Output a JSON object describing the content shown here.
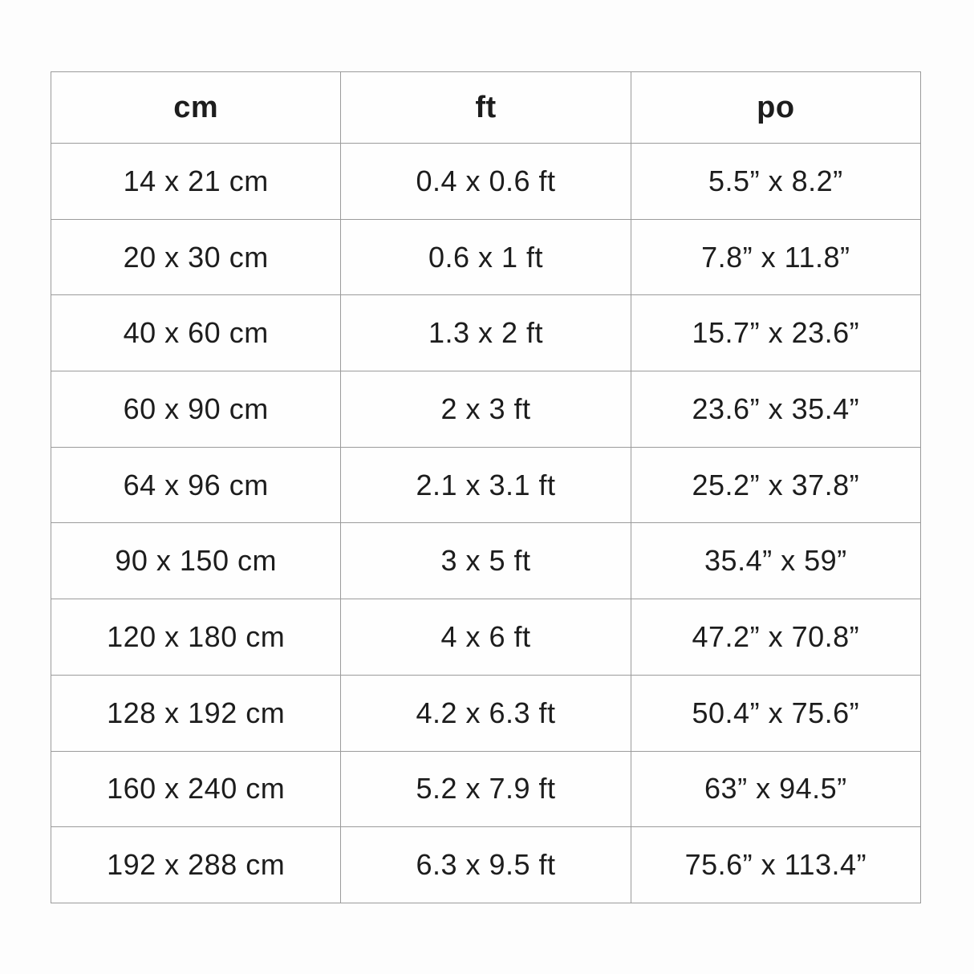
{
  "colors": {
    "page_background": "#fdfdfd",
    "table_background": "#fefefe",
    "border": "#9b9b9b",
    "text": "#1d1d1d"
  },
  "table": {
    "columns": [
      {
        "key": "cm",
        "label": "cm"
      },
      {
        "key": "ft",
        "label": "ft"
      },
      {
        "key": "po",
        "label": "po"
      }
    ],
    "rows": [
      {
        "cm": "14 x 21 cm",
        "ft": "0.4 x 0.6 ft",
        "po": "5.5” x 8.2”"
      },
      {
        "cm": "20 x 30 cm",
        "ft": "0.6 x 1 ft",
        "po": "7.8” x 11.8”"
      },
      {
        "cm": "40 x 60 cm",
        "ft": "1.3 x 2 ft",
        "po": "15.7” x 23.6”"
      },
      {
        "cm": "60 x 90 cm",
        "ft": "2 x 3 ft",
        "po": "23.6” x 35.4”"
      },
      {
        "cm": "64 x 96 cm",
        "ft": "2.1 x 3.1 ft",
        "po": "25.2” x 37.8”"
      },
      {
        "cm": "90 x 150 cm",
        "ft": "3 x 5 ft",
        "po": "35.4” x 59”"
      },
      {
        "cm": "120 x 180 cm",
        "ft": "4 x 6 ft",
        "po": "47.2” x 70.8”"
      },
      {
        "cm": "128 x 192 cm",
        "ft": "4.2 x 6.3 ft",
        "po": "50.4” x 75.6”"
      },
      {
        "cm": "160 x 240 cm",
        "ft": "5.2 x 7.9 ft",
        "po": "63” x 94.5”"
      },
      {
        "cm": "192 x 288 cm",
        "ft": "6.3 x 9.5 ft",
        "po": "75.6” x 113.4”"
      }
    ]
  },
  "chart_data": {
    "type": "table",
    "title": "",
    "columns": [
      "cm",
      "ft",
      "po"
    ],
    "rows": [
      [
        "14 x 21 cm",
        "0.4 x 0.6 ft",
        "5.5” x 8.2”"
      ],
      [
        "20 x 30 cm",
        "0.6 x 1 ft",
        "7.8” x 11.8”"
      ],
      [
        "40 x 60 cm",
        "1.3 x 2 ft",
        "15.7” x 23.6”"
      ],
      [
        "60 x 90 cm",
        "2 x 3 ft",
        "23.6” x 35.4”"
      ],
      [
        "64 x 96 cm",
        "2.1 x 3.1 ft",
        "25.2” x 37.8”"
      ],
      [
        "90 x 150 cm",
        "3 x 5 ft",
        "35.4” x 59”"
      ],
      [
        "120 x 180 cm",
        "4 x 6 ft",
        "47.2” x 70.8”"
      ],
      [
        "128 x 192 cm",
        "4.2 x 6.3 ft",
        "50.4” x 75.6”"
      ],
      [
        "160 x 240 cm",
        "5.2 x 7.9 ft",
        "63” x 94.5”"
      ],
      [
        "192 x 288 cm",
        "6.3 x 9.5 ft",
        "75.6” x 113.4”"
      ]
    ]
  }
}
